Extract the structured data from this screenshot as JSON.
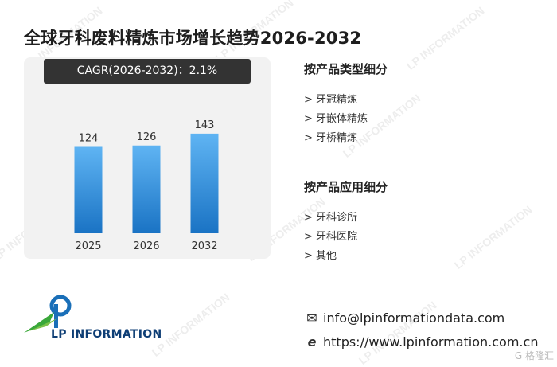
{
  "title": "全球牙科废料精炼市场增长趋势2026-2032",
  "cagr": "CAGR(2026-2032)：2.1%",
  "chart_data": {
    "type": "bar",
    "categories": [
      "2025",
      "2026",
      "2032"
    ],
    "values": [
      124,
      126,
      143
    ],
    "data_labels": [
      "124",
      "126",
      "143"
    ],
    "ylim": [
      0,
      160
    ],
    "grid": false,
    "bar_color_top": "#5fb4f3",
    "bar_color_bottom": "#1a73c4"
  },
  "segments": {
    "type_title": "按产品类型细分",
    "type_items": [
      "> 牙冠精炼",
      "> 牙嵌体精炼",
      "> 牙桥精炼"
    ],
    "app_title": "按产品应用细分",
    "app_items": [
      "> 牙科诊所",
      "> 牙科医院",
      "> 其他"
    ]
  },
  "logo": {
    "name": "LP INFORMATION"
  },
  "contact": {
    "email_icon": "envelope-icon",
    "email": "info@lpinformationdata.com",
    "web_icon": "browser-e-icon",
    "website": "https://www.lpinformation.com.cn"
  },
  "watermark_text": "LP INFORMATION",
  "corner_badge": "G 格隆汇"
}
